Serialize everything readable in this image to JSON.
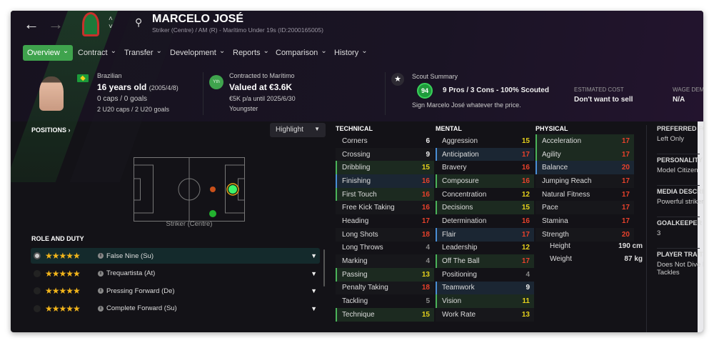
{
  "header": {
    "name": "MARCELO JOSÉ",
    "subtitle": "Striker (Centre) / AM (R) - Marítimo Under 19s (ID:2000165005)"
  },
  "tabs": [
    {
      "label": "Overview"
    },
    {
      "label": "Contract"
    },
    {
      "label": "Transfer"
    },
    {
      "label": "Development"
    },
    {
      "label": "Reports"
    },
    {
      "label": "Comparison"
    },
    {
      "label": "History"
    }
  ],
  "bio": {
    "nationality": "Brazilian",
    "age": "16 years old",
    "dob": "(2005/4/8)",
    "caps": "0 caps / 0 goals",
    "u20": "2 U20 caps / 2 U20 goals"
  },
  "contract": {
    "badge": "Yth",
    "club": "Contracted to Marítimo",
    "value": "Valued at €3.6K",
    "wage": "€5K p/a until 2025/6/30",
    "status": "Youngster"
  },
  "scout": {
    "title": "Scout Summary",
    "rating": "94",
    "summary": "9 Pros / 3 Cons - 100% Scouted",
    "advice": "Sign Marcelo José whatever the price.",
    "cost_label": "ESTIMATED COST",
    "cost_value": "Don't want to sell",
    "wage_label": "WAGE DEMANDS",
    "wage_value": "N/A"
  },
  "positions": {
    "title": "POSITIONS",
    "dropdown": "Highlight",
    "caption": "Striker (Centre)"
  },
  "roles": {
    "title": "ROLE AND DUTY",
    "items": [
      {
        "label": "False Nine (Su)",
        "stars": 5,
        "selected": true
      },
      {
        "label": "Trequartista (At)",
        "stars": 5
      },
      {
        "label": "Pressing Forward (De)",
        "stars": 5
      },
      {
        "label": "Complete Forward (Su)",
        "stars": 5
      }
    ]
  },
  "technical": {
    "title": "TECHNICAL",
    "rows": [
      [
        "Corners",
        6,
        ""
      ],
      [
        "Crossing",
        9,
        ""
      ],
      [
        "Dribbling",
        15,
        "g"
      ],
      [
        "Finishing",
        16,
        "b"
      ],
      [
        "First Touch",
        16,
        "g"
      ],
      [
        "Free Kick Taking",
        16,
        ""
      ],
      [
        "Heading",
        17,
        ""
      ],
      [
        "Long Shots",
        18,
        ""
      ],
      [
        "Long Throws",
        4,
        ""
      ],
      [
        "Marking",
        4,
        ""
      ],
      [
        "Passing",
        13,
        "g"
      ],
      [
        "Penalty Taking",
        18,
        ""
      ],
      [
        "Tackling",
        5,
        ""
      ],
      [
        "Technique",
        15,
        "g"
      ]
    ]
  },
  "mental": {
    "title": "MENTAL",
    "rows": [
      [
        "Aggression",
        15,
        ""
      ],
      [
        "Anticipation",
        17,
        "b"
      ],
      [
        "Bravery",
        16,
        ""
      ],
      [
        "Composure",
        16,
        "g"
      ],
      [
        "Concentration",
        12,
        ""
      ],
      [
        "Decisions",
        15,
        "g"
      ],
      [
        "Determination",
        16,
        ""
      ],
      [
        "Flair",
        17,
        "b"
      ],
      [
        "Leadership",
        12,
        ""
      ],
      [
        "Off The Ball",
        17,
        "g"
      ],
      [
        "Positioning",
        4,
        ""
      ],
      [
        "Teamwork",
        9,
        "b"
      ],
      [
        "Vision",
        11,
        "g"
      ],
      [
        "Work Rate",
        13,
        ""
      ]
    ]
  },
  "physical": {
    "title": "PHYSICAL",
    "rows": [
      [
        "Acceleration",
        17,
        "g"
      ],
      [
        "Agility",
        17,
        "g"
      ],
      [
        "Balance",
        20,
        "b"
      ],
      [
        "Jumping Reach",
        17,
        ""
      ],
      [
        "Natural Fitness",
        17,
        ""
      ],
      [
        "Pace",
        17,
        ""
      ],
      [
        "Stamina",
        17,
        ""
      ],
      [
        "Strength",
        20,
        ""
      ]
    ],
    "height_label": "Height",
    "height": "190 cm",
    "weight_label": "Weight",
    "weight": "87 kg"
  },
  "side": [
    {
      "label": "PREFERRED FOOT",
      "value": "Left Only"
    },
    {
      "label": "PERSONALITY",
      "value": "Model Citizen"
    },
    {
      "label": "MEDIA DESCRIPTION",
      "value": "Powerful striker"
    },
    {
      "label": "GOALKEEPER RATING",
      "value": "3"
    },
    {
      "label": "PLAYER TRAITS",
      "value": "Does Not Dive Into Tackles"
    }
  ],
  "colors": {
    "accent": "#3fa34d",
    "high": "#e8412b",
    "mid": "#e6d11c",
    "low": "#8a8a8a"
  }
}
